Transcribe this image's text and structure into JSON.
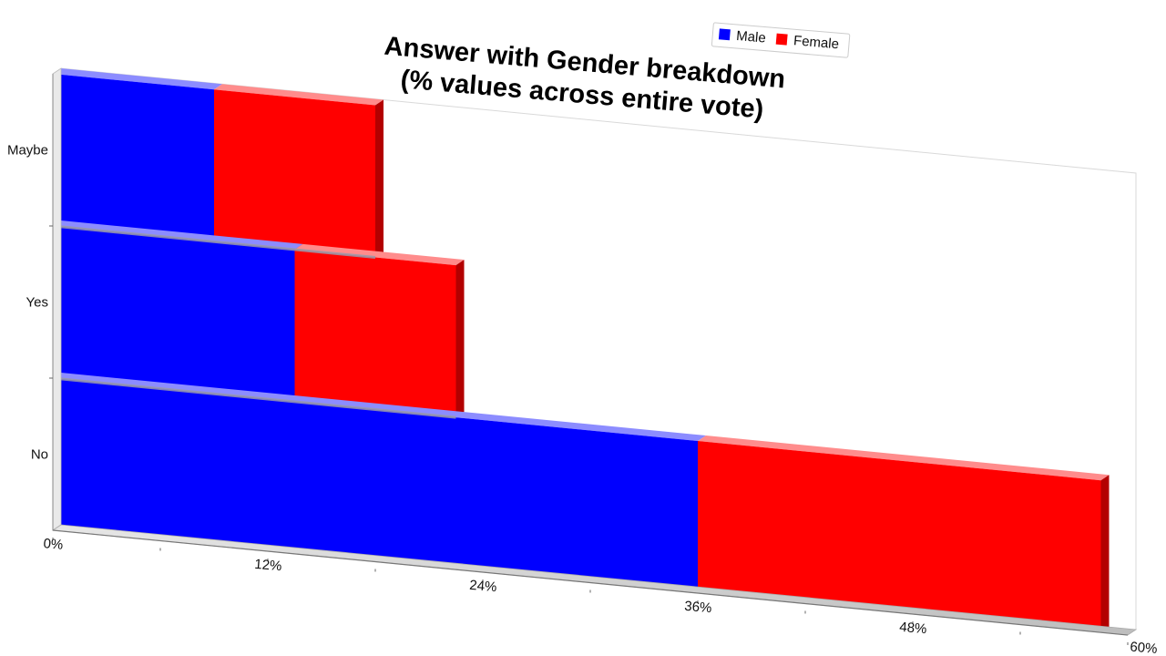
{
  "chart_data": {
    "type": "bar",
    "orientation": "horizontal",
    "stacked": true,
    "title": [
      "Answer with Gender breakdown",
      "(% values across entire vote)"
    ],
    "categories": [
      "Maybe",
      "Yes",
      "No"
    ],
    "series": [
      {
        "name": "Male",
        "color": "#0000ff",
        "values": [
          9,
          13.5,
          36
        ]
      },
      {
        "name": "Female",
        "color": "#ff0000",
        "values": [
          9,
          9,
          22.5
        ]
      }
    ],
    "x_ticks": [
      "0%",
      "12%",
      "24%",
      "36%",
      "48%",
      "60%"
    ],
    "xlim": [
      0,
      60
    ],
    "legend_position": "top-right",
    "grid": false,
    "three_d": true
  }
}
